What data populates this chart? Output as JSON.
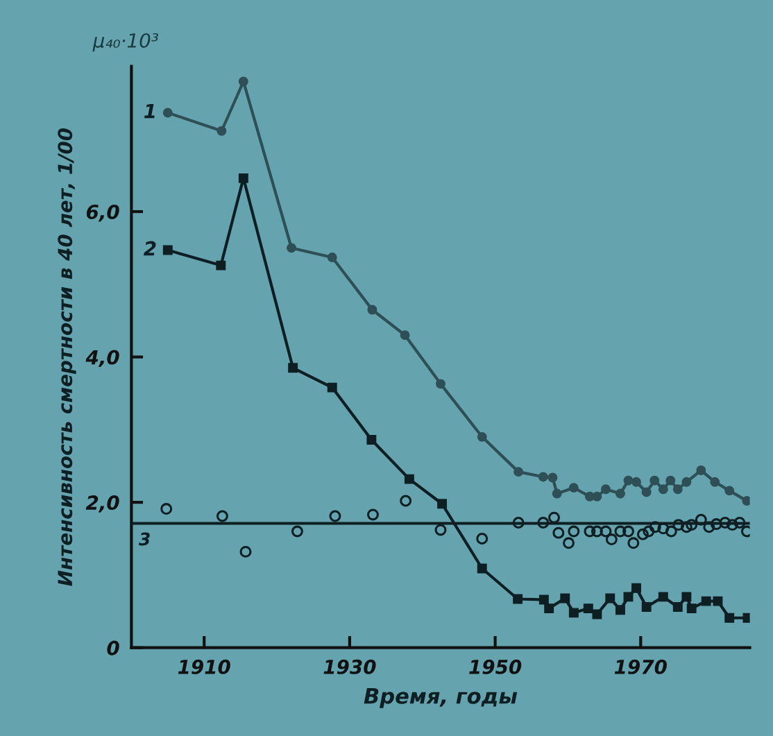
{
  "chart_data": {
    "type": "line",
    "xlabel": "Время, годы",
    "ylabel": "Интенсивность смертности в 40 лет, 1/00",
    "annotations": [
      "μ₄₀·10³"
    ],
    "xlim": [
      1900,
      1985
    ],
    "ylim": [
      0,
      8.0
    ],
    "xticks": [
      1910,
      1930,
      1950,
      1970
    ],
    "yticks": [
      0,
      {
        "value": 2.0,
        "label": "2,0"
      },
      {
        "value": 4.0,
        "label": "4,0"
      },
      {
        "value": 6.0,
        "label": "6,0"
      }
    ],
    "grid": false,
    "legend": false,
    "line_style": "solid",
    "series": [
      {
        "name": "1",
        "color": "#2e4f56",
        "marker": "circle",
        "x": [
          1905,
          1912.4,
          1915.4,
          1922,
          1927.6,
          1933.1,
          1937.6,
          1942.5,
          1948.2,
          1953.2,
          1956.6,
          1957.9,
          1958.5,
          1960.8,
          1963,
          1964,
          1965.2,
          1967.2,
          1968.3,
          1969.4,
          1970.8,
          1971.9,
          1973.1,
          1974.1,
          1975.1,
          1976.3,
          1978.3,
          1980.2,
          1982.2,
          1984.6
        ],
        "values": [
          7.36,
          7.11,
          7.79,
          5.5,
          5.37,
          4.65,
          4.3,
          3.63,
          2.9,
          2.42,
          2.35,
          2.34,
          2.12,
          2.2,
          2.08,
          2.08,
          2.18,
          2.12,
          2.3,
          2.28,
          2.14,
          2.3,
          2.18,
          2.3,
          2.18,
          2.28,
          2.44,
          2.28,
          2.16,
          2.02
        ]
      },
      {
        "name": "2",
        "color": "#0e1f24",
        "marker": "square",
        "x": [
          1905,
          1912.3,
          1915.4,
          1922.2,
          1927.6,
          1933,
          1938.2,
          1942.7,
          1948.2,
          1953.1,
          1956.7,
          1957.4,
          1959.6,
          1960.8,
          1962.8,
          1964,
          1965.8,
          1967.2,
          1968.3,
          1969.4,
          1970.8,
          1973.1,
          1975.1,
          1976.3,
          1977,
          1979,
          1980.6,
          1982.2,
          1984.7
        ],
        "values": [
          5.47,
          5.26,
          6.46,
          3.85,
          3.58,
          2.86,
          2.32,
          1.98,
          1.09,
          0.67,
          0.66,
          0.54,
          0.68,
          0.48,
          0.54,
          0.46,
          0.68,
          0.52,
          0.7,
          0.82,
          0.56,
          0.7,
          0.56,
          0.7,
          0.54,
          0.64,
          0.64,
          0.41,
          0.41
        ]
      },
      {
        "type": "scatter",
        "color": "#0e1f24",
        "marker": "circle",
        "x": [
          1904.8,
          1912.5,
          1915.7,
          1922.8,
          1928,
          1933.2,
          1937.7,
          1942.5,
          1948.2,
          1953.2,
          1956.6,
          1958.1,
          1958.7,
          1960.1,
          1960.8,
          1963,
          1964,
          1965.2,
          1966,
          1967.2,
          1968.3,
          1969,
          1970.3,
          1971.1,
          1972,
          1973.1,
          1974.2,
          1975.2,
          1976.3,
          1977,
          1978.3,
          1979.4,
          1980.4,
          1981.6,
          1982.6,
          1983.6,
          1984.6
        ],
        "values": [
          1.91,
          1.81,
          1.32,
          1.6,
          1.81,
          1.83,
          2.02,
          1.62,
          1.5,
          1.72,
          1.72,
          1.79,
          1.58,
          1.44,
          1.6,
          1.6,
          1.6,
          1.6,
          1.49,
          1.6,
          1.6,
          1.44,
          1.56,
          1.6,
          1.66,
          1.64,
          1.6,
          1.69,
          1.66,
          1.69,
          1.76,
          1.66,
          1.7,
          1.72,
          1.69,
          1.72,
          1.6
        ]
      },
      {
        "name": "3",
        "color": "#0e1f24",
        "marker": "none",
        "x": [
          1900,
          1985
        ],
        "values": [
          1.71,
          1.71
        ]
      }
    ]
  }
}
